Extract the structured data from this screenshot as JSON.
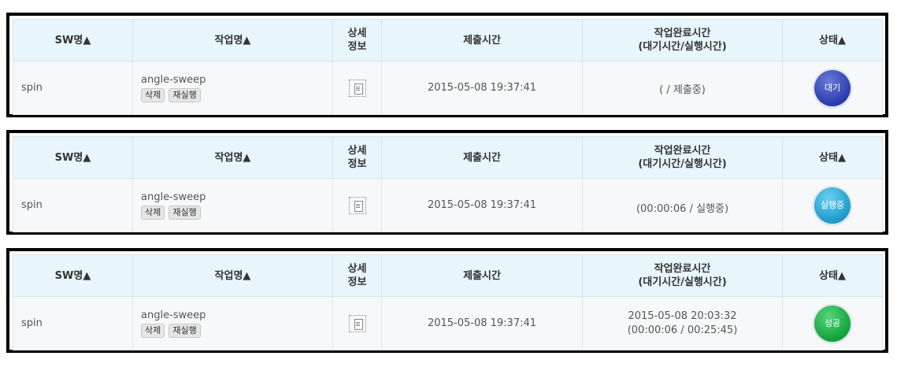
{
  "header": {
    "sw_name": "SW명▲",
    "job_name": "작업명▲",
    "detail_line1": "상세",
    "detail_line2": "정보",
    "submit_time": "제출시간",
    "complete_time_line1": "작업완료시간",
    "complete_time_line2": "(대기시간/실행시간)",
    "status": "상태▲"
  },
  "buttons": {
    "delete": "삭제",
    "rerun": "재실행"
  },
  "icons": {
    "detail": "document-icon"
  },
  "status_colors": {
    "wait": "#2b3bb0",
    "running": "#1e9acb",
    "success": "#11a23a"
  },
  "jobs": [
    {
      "sw": "spin",
      "name": "angle-sweep",
      "submitted": "2015-05-08 19:37:41",
      "completed_line1": "",
      "completed_line2": "( / 제출중)",
      "status": "대기"
    },
    {
      "sw": "spin",
      "name": "angle-sweep",
      "submitted": "2015-05-08 19:37:41",
      "completed_line1": "",
      "completed_line2": "(00:00:06 / 실행중)",
      "status": "실행중"
    },
    {
      "sw": "spin",
      "name": "angle-sweep",
      "submitted": "2015-05-08 19:37:41",
      "completed_line1": "2015-05-08 20:03:32",
      "completed_line2": "(00:00:06 / 00:25:45)",
      "status": "성공"
    }
  ]
}
